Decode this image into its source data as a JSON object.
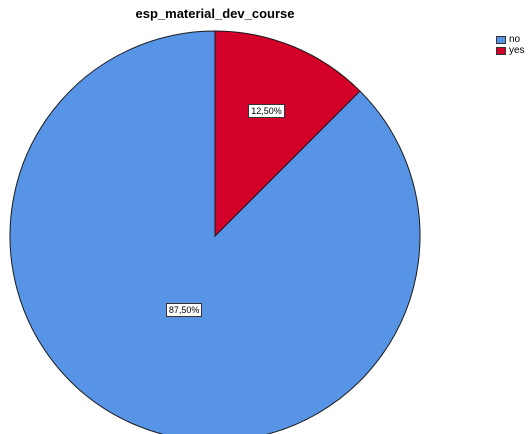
{
  "chart_data": {
    "type": "pie",
    "title": "esp_material_dev_course",
    "categories": [
      "no",
      "yes"
    ],
    "values": [
      87.5,
      12.5
    ],
    "labels": [
      "87,50%",
      "12,50%"
    ],
    "colors": [
      "#5894e6",
      "#d3002a"
    ],
    "legend_position": "top-right",
    "start_angle": "12 o'clock",
    "direction": "counter-clockwise"
  }
}
